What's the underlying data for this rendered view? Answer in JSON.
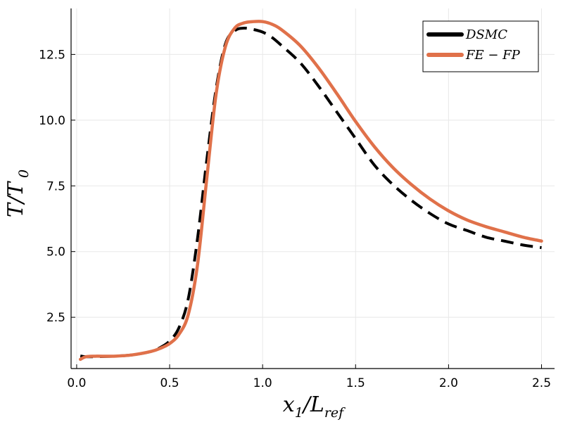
{
  "chart_data": {
    "type": "line",
    "xlabel": "x_1/L_ref",
    "ylabel": "T/T_0",
    "xlim": [
      -0.03,
      2.57
    ],
    "ylim": [
      0.55,
      14.25
    ],
    "xticks": [
      "0.0",
      "0.5",
      "1.0",
      "1.5",
      "2.0",
      "2.5"
    ],
    "xtick_values": [
      0.0,
      0.5,
      1.0,
      1.5,
      2.0,
      2.5
    ],
    "yticks": [
      "2.5",
      "5.0",
      "7.5",
      "10.0",
      "12.5"
    ],
    "ytick_values": [
      2.5,
      5.0,
      7.5,
      10.0,
      12.5
    ],
    "grid": true,
    "legend_position": "top-right",
    "series": [
      {
        "name": "DSMC",
        "color": "#000000",
        "style": "dashed",
        "x": [
          0.02,
          0.05,
          0.1,
          0.2,
          0.3,
          0.4,
          0.45,
          0.5,
          0.55,
          0.6,
          0.65,
          0.7,
          0.75,
          0.8,
          0.85,
          0.9,
          0.95,
          1.0,
          1.05,
          1.1,
          1.2,
          1.3,
          1.4,
          1.5,
          1.6,
          1.7,
          1.8,
          1.9,
          2.0,
          2.1,
          2.2,
          2.3,
          2.4,
          2.5
        ],
        "y": [
          1.03,
          1.0,
          1.0,
          1.02,
          1.07,
          1.2,
          1.35,
          1.6,
          2.1,
          3.2,
          5.5,
          8.5,
          11.2,
          12.9,
          13.4,
          13.5,
          13.45,
          13.35,
          13.15,
          12.85,
          12.2,
          11.3,
          10.3,
          9.3,
          8.3,
          7.55,
          6.95,
          6.45,
          6.05,
          5.8,
          5.55,
          5.4,
          5.25,
          5.15
        ]
      },
      {
        "name": "FE − FP",
        "color": "#E0714A",
        "style": "solid",
        "x": [
          0.02,
          0.05,
          0.1,
          0.2,
          0.3,
          0.4,
          0.45,
          0.5,
          0.55,
          0.6,
          0.65,
          0.7,
          0.75,
          0.8,
          0.85,
          0.9,
          0.95,
          1.0,
          1.05,
          1.1,
          1.2,
          1.3,
          1.4,
          1.5,
          1.6,
          1.7,
          1.8,
          1.9,
          2.0,
          2.1,
          2.2,
          2.3,
          2.4,
          2.5
        ],
        "y": [
          0.9,
          1.0,
          1.02,
          1.02,
          1.07,
          1.2,
          1.32,
          1.5,
          1.85,
          2.6,
          4.5,
          7.8,
          11.0,
          12.8,
          13.5,
          13.7,
          13.75,
          13.75,
          13.65,
          13.45,
          12.85,
          12.0,
          11.0,
          9.95,
          9.0,
          8.2,
          7.55,
          7.0,
          6.55,
          6.2,
          5.95,
          5.75,
          5.55,
          5.4
        ]
      }
    ]
  }
}
